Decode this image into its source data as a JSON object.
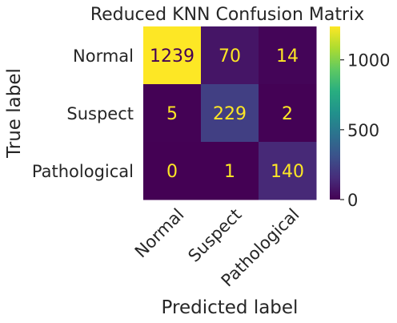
{
  "chart_data": {
    "type": "heatmap",
    "title": "Reduced KNN Confusion Matrix",
    "xlabel": "Predicted label",
    "ylabel": "True label",
    "row_labels": [
      "Normal",
      "Suspect",
      "Pathological"
    ],
    "col_labels": [
      "Normal",
      "Suspect",
      "Pathological"
    ],
    "values": [
      [
        1239,
        70,
        14
      ],
      [
        5,
        229,
        2
      ],
      [
        0,
        1,
        140
      ]
    ],
    "colormap": "viridis",
    "vmin": 0,
    "vmax": 1239,
    "colorbar_ticks": [
      0,
      500,
      1000
    ],
    "text_colors": {
      "dark_cell": "#fde725",
      "bright_cell": "#440154"
    }
  }
}
